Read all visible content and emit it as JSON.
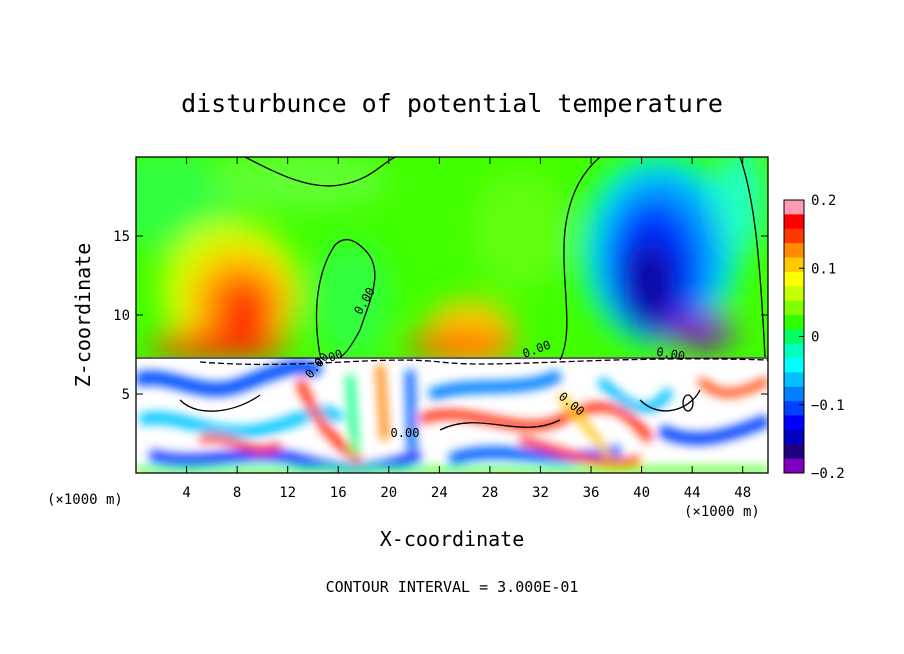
{
  "chart_data": {
    "type": "heatmap",
    "title": "disturbunce of potential temperature",
    "xlabel": "X-coordinate",
    "ylabel": "Z-coordinate",
    "x_units": "(×1000 m)",
    "y_units": "(×1000 m)",
    "xlim": [
      0,
      50
    ],
    "ylim": [
      0,
      20
    ],
    "x_ticks": [
      4,
      8,
      12,
      16,
      20,
      24,
      28,
      32,
      36,
      40,
      44,
      48
    ],
    "y_ticks": [
      5,
      10,
      15
    ],
    "colorbar": {
      "range": [
        -0.2,
        0.2
      ],
      "tick_values": [
        0.2,
        0.1,
        0,
        -0.1,
        -0.2
      ],
      "tick_labels": [
        "0.2",
        "0.1",
        "0",
        "−0.1",
        "−0.2"
      ],
      "colors": [
        "#ff9cb4",
        "#ff0000",
        "#ff3800",
        "#ff8c00",
        "#ffc800",
        "#ffff00",
        "#c8ff00",
        "#80ff00",
        "#30ff00",
        "#00ff60",
        "#00ffc0",
        "#00ffff",
        "#00c0ff",
        "#0080ff",
        "#0040ff",
        "#0000ff",
        "#0000c0",
        "#200080",
        "#8000c0"
      ]
    },
    "contour_labels": [
      "0.00",
      "0.00",
      "0.00",
      "0.00",
      "0.00",
      "0.00",
      "0.00"
    ],
    "footer": "CONTOUR INTERVAL = 3.000E-01",
    "features": [
      {
        "x": 9,
        "z": 11,
        "value": 0.12
      },
      {
        "x": 26,
        "z": 9,
        "value": 0.08
      },
      {
        "x": 42,
        "z": 12,
        "value": -0.19
      },
      {
        "x": 48,
        "z": 16,
        "value": -0.06
      },
      {
        "x": 20,
        "z": 15,
        "value": 0.0
      }
    ]
  }
}
